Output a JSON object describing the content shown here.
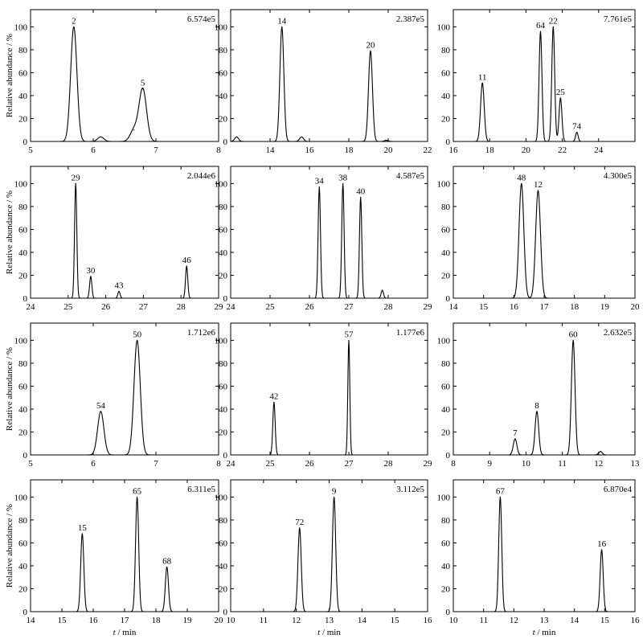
{
  "figure": {
    "ylabel": "Relative abundance / %",
    "xlabel_italic": "t",
    "xlabel_rest": " / min"
  },
  "chart_data": [
    {
      "type": "line",
      "scale": "6.574e5",
      "xlim": [
        5,
        8
      ],
      "xticks": [
        5,
        6,
        7,
        8
      ],
      "ylim": [
        0,
        115
      ],
      "yticks": [
        0,
        20,
        40,
        60,
        80,
        100
      ],
      "peaks": [
        {
          "x": 5.69,
          "h": 100,
          "w": 0.05,
          "label": "2"
        },
        {
          "x": 6.12,
          "h": 4,
          "w": 0.05
        },
        {
          "x": 6.65,
          "h": 10,
          "w": 0.06
        },
        {
          "x": 6.79,
          "h": 46,
          "w": 0.06,
          "label": "5"
        }
      ]
    },
    {
      "type": "line",
      "scale": "2.387e5",
      "xlim": [
        12,
        22
      ],
      "xticks": [
        14,
        16,
        18,
        20,
        22
      ],
      "ylim": [
        0,
        115
      ],
      "yticks": [
        0,
        20,
        40,
        60,
        80,
        100
      ],
      "peaks": [
        {
          "x": 12.3,
          "h": 4,
          "w": 0.1
        },
        {
          "x": 14.6,
          "h": 100,
          "w": 0.1,
          "label": "14"
        },
        {
          "x": 15.6,
          "h": 4,
          "w": 0.1
        },
        {
          "x": 19.1,
          "h": 79,
          "w": 0.1,
          "label": "20"
        },
        {
          "x": 19.9,
          "h": 1,
          "w": 0.1
        }
      ]
    },
    {
      "type": "line",
      "scale": "7.761e5",
      "xlim": [
        16,
        26
      ],
      "xticks": [
        16,
        18,
        20,
        22,
        24
      ],
      "ylim": [
        0,
        115
      ],
      "yticks": [
        0,
        20,
        40,
        60,
        80,
        100
      ],
      "peaks": [
        {
          "x": 17.6,
          "h": 51,
          "w": 0.1,
          "label": "11"
        },
        {
          "x": 20.8,
          "h": 96,
          "w": 0.08,
          "label": "64"
        },
        {
          "x": 21.5,
          "h": 100,
          "w": 0.08,
          "label": "22"
        },
        {
          "x": 21.9,
          "h": 38,
          "w": 0.08,
          "label": "25"
        },
        {
          "x": 22.8,
          "h": 8,
          "w": 0.07,
          "label": "74"
        }
      ]
    },
    {
      "type": "line",
      "scale": "2.044e6",
      "xlim": [
        24,
        29
      ],
      "xticks": [
        24,
        25,
        26,
        27,
        28,
        29
      ],
      "ylim": [
        0,
        115
      ],
      "yticks": [
        0,
        20,
        40,
        60,
        80,
        100
      ],
      "peaks": [
        {
          "x": 25.2,
          "h": 100,
          "w": 0.03,
          "label": "29"
        },
        {
          "x": 25.6,
          "h": 19,
          "w": 0.03,
          "label": "30"
        },
        {
          "x": 26.35,
          "h": 6,
          "w": 0.03,
          "label": "43"
        },
        {
          "x": 28.15,
          "h": 28,
          "w": 0.03,
          "label": "46"
        }
      ]
    },
    {
      "type": "line",
      "scale": "4.587e5",
      "xlim": [
        24,
        29
      ],
      "xticks": [
        24,
        25,
        26,
        27,
        28,
        29
      ],
      "ylim": [
        0,
        115
      ],
      "yticks": [
        0,
        20,
        40,
        60,
        80,
        100
      ],
      "peaks": [
        {
          "x": 26.25,
          "h": 97,
          "w": 0.03,
          "label": "34"
        },
        {
          "x": 26.85,
          "h": 100,
          "w": 0.03,
          "label": "38"
        },
        {
          "x": 27.3,
          "h": 88,
          "w": 0.03,
          "label": "40"
        },
        {
          "x": 27.85,
          "h": 7,
          "w": 0.03
        }
      ]
    },
    {
      "type": "line",
      "scale": "4.300e5",
      "xlim": [
        14,
        20
      ],
      "xticks": [
        14,
        15,
        16,
        17,
        18,
        19,
        20
      ],
      "ylim": [
        0,
        115
      ],
      "yticks": [
        0,
        20,
        40,
        60,
        80,
        100
      ],
      "peaks": [
        {
          "x": 16.25,
          "h": 100,
          "w": 0.08,
          "label": "48"
        },
        {
          "x": 16.8,
          "h": 94,
          "w": 0.08,
          "label": "12"
        }
      ]
    },
    {
      "type": "line",
      "scale": "1.712e6",
      "xlim": [
        5,
        8
      ],
      "xticks": [
        5,
        6,
        7,
        8
      ],
      "ylim": [
        0,
        115
      ],
      "yticks": [
        0,
        20,
        40,
        60,
        80,
        100
      ],
      "peaks": [
        {
          "x": 6.12,
          "h": 38,
          "w": 0.05,
          "label": "54"
        },
        {
          "x": 6.7,
          "h": 100,
          "w": 0.05,
          "label": "50"
        }
      ]
    },
    {
      "type": "line",
      "scale": "1.177e6",
      "xlim": [
        24,
        29
      ],
      "xticks": [
        24,
        25,
        26,
        27,
        28,
        29
      ],
      "ylim": [
        0,
        115
      ],
      "yticks": [
        0,
        20,
        40,
        60,
        80,
        100
      ],
      "peaks": [
        {
          "x": 25.1,
          "h": 46,
          "w": 0.03,
          "label": "42"
        },
        {
          "x": 27,
          "h": 100,
          "w": 0.025,
          "label": "57"
        }
      ]
    },
    {
      "type": "line",
      "scale": "2.632e5",
      "xlim": [
        8,
        13
      ],
      "xticks": [
        8,
        9,
        10,
        11,
        12,
        13
      ],
      "ylim": [
        0,
        115
      ],
      "yticks": [
        0,
        20,
        40,
        60,
        80,
        100
      ],
      "peaks": [
        {
          "x": 9.7,
          "h": 14,
          "w": 0.05,
          "label": "7"
        },
        {
          "x": 10.3,
          "h": 38,
          "w": 0.05,
          "label": "8"
        },
        {
          "x": 11.3,
          "h": 100,
          "w": 0.05,
          "label": "60"
        },
        {
          "x": 12.05,
          "h": 3,
          "w": 0.05
        }
      ]
    },
    {
      "type": "line",
      "scale": "6.311e5",
      "xlim": [
        14,
        20
      ],
      "xticks": [
        14,
        15,
        16,
        17,
        18,
        19,
        20
      ],
      "ylim": [
        0,
        115
      ],
      "yticks": [
        0,
        20,
        40,
        60,
        80,
        100
      ],
      "peaks": [
        {
          "x": 15.65,
          "h": 68,
          "w": 0.05,
          "label": "15"
        },
        {
          "x": 17.4,
          "h": 100,
          "w": 0.05,
          "label": "65"
        },
        {
          "x": 18.35,
          "h": 39,
          "w": 0.05,
          "label": "68"
        }
      ]
    },
    {
      "type": "line",
      "scale": "3.112e5",
      "xlim": [
        10,
        16
      ],
      "xticks": [
        10,
        11,
        12,
        13,
        14,
        15,
        16
      ],
      "ylim": [
        0,
        115
      ],
      "yticks": [
        0,
        20,
        40,
        60,
        80,
        100
      ],
      "peaks": [
        {
          "x": 12.1,
          "h": 73,
          "w": 0.05,
          "label": "72"
        },
        {
          "x": 13.15,
          "h": 100,
          "w": 0.05,
          "label": "9"
        }
      ]
    },
    {
      "type": "line",
      "scale": "6.870e4",
      "xlim": [
        10,
        16
      ],
      "xticks": [
        10,
        11,
        12,
        13,
        14,
        15,
        16
      ],
      "ylim": [
        0,
        115
      ],
      "yticks": [
        0,
        20,
        40,
        60,
        80,
        100
      ],
      "peaks": [
        {
          "x": 11.55,
          "h": 100,
          "w": 0.05,
          "label": "67"
        },
        {
          "x": 14.9,
          "h": 54,
          "w": 0.05,
          "label": "16"
        }
      ]
    }
  ]
}
